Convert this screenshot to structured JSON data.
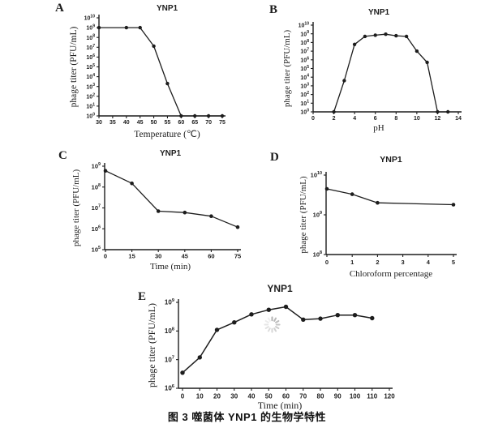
{
  "figure": {
    "caption": "图 3  噬菌体 YNP1 的生物学特性"
  },
  "chart_data": [
    {
      "panel": "A",
      "type": "line",
      "title": "YNP1",
      "xlabel": "Temperature (℃)",
      "ylabel": "phage titer (PFU/mL)",
      "x_ticks": [
        30,
        35,
        40,
        45,
        50,
        55,
        60,
        65,
        70,
        75
      ],
      "xlim": [
        30,
        75
      ],
      "ylog_exponent_range": [
        0,
        10
      ],
      "grid": false,
      "x": [
        30,
        40,
        45,
        50,
        55,
        60,
        65,
        70,
        75
      ],
      "y": [
        1000000000.0,
        1000000000.0,
        1000000000.0,
        13000000.0,
        2000.0,
        1,
        1,
        1,
        1
      ]
    },
    {
      "panel": "B",
      "type": "line",
      "title": "YNP1",
      "xlabel": "pH",
      "ylabel": "phage titer (PFU/mL)",
      "x_ticks": [
        0,
        2,
        4,
        6,
        8,
        10,
        12,
        14
      ],
      "xlim": [
        0,
        14
      ],
      "ylog_exponent_range": [
        0,
        10
      ],
      "grid": false,
      "x": [
        2,
        3,
        4,
        5,
        6,
        7,
        8,
        9,
        10,
        11,
        12,
        13
      ],
      "y": [
        1,
        4000.0,
        60000000.0,
        500000000.0,
        700000000.0,
        900000000.0,
        600000000.0,
        500000000.0,
        10000000.0,
        500000.0,
        1,
        1
      ]
    },
    {
      "panel": "C",
      "type": "line",
      "title": "YNP1",
      "xlabel": "Time (min)",
      "ylabel": "phage titer (PFU/mL)",
      "x_ticks": [
        0,
        15,
        30,
        45,
        60,
        75
      ],
      "xlim": [
        0,
        75
      ],
      "ylog_exponent_range": [
        5,
        9
      ],
      "grid": false,
      "x": [
        0,
        15,
        30,
        45,
        60,
        75
      ],
      "y": [
        600000000.0,
        150000000.0,
        7000000.0,
        6000000.0,
        4000000.0,
        1200000.0
      ]
    },
    {
      "panel": "D",
      "type": "line",
      "title": "YNP1",
      "xlabel": "Chloroform percentage",
      "ylabel": "phage titer (PFU/mL)",
      "x_ticks": [
        0,
        1,
        2,
        3,
        4,
        5
      ],
      "xlim": [
        0,
        5
      ],
      "ylog_exponent_range": [
        8,
        10
      ],
      "grid": false,
      "x": [
        0,
        1,
        2,
        5
      ],
      "y": [
        4500000000.0,
        3300000000.0,
        2000000000.0,
        1800000000.0
      ]
    },
    {
      "panel": "E",
      "type": "line",
      "title": "YNP1",
      "xlabel": "Time (min)",
      "ylabel": "phage titer (PFU/mL)",
      "x_ticks": [
        0,
        10,
        20,
        30,
        40,
        50,
        60,
        70,
        80,
        90,
        100,
        110,
        120
      ],
      "xlim": [
        0,
        120
      ],
      "ylog_exponent_range": [
        6,
        9
      ],
      "grid": false,
      "x": [
        0,
        10,
        20,
        30,
        40,
        50,
        60,
        70,
        80,
        90,
        100,
        110
      ],
      "y": [
        3500000.0,
        12000000.0,
        110000000.0,
        200000000.0,
        380000000.0,
        550000000.0,
        700000000.0,
        250000000.0,
        270000000.0,
        360000000.0,
        360000000.0,
        280000000.0
      ]
    }
  ]
}
